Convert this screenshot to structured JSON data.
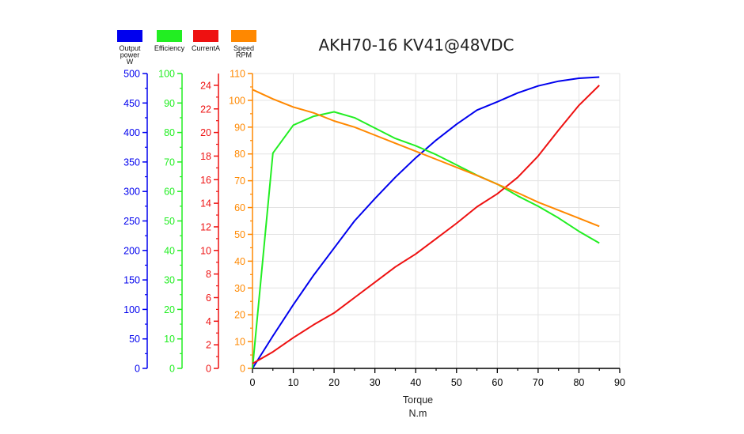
{
  "chart_data": {
    "type": "line",
    "title": "AKH70-16 KV41@48VDC",
    "xlabel": "Torque",
    "xunit": "N.m",
    "xlim": [
      0,
      90
    ],
    "xticks": [
      0,
      10,
      20,
      30,
      40,
      50,
      60,
      70,
      80,
      90
    ],
    "grid": true,
    "legend_position": "top-left",
    "series": [
      {
        "key": "power",
        "name": "Output power W",
        "legend_lines": [
          "Output",
          "power",
          "W"
        ],
        "color": "#0000ee",
        "ylim": [
          0,
          500
        ],
        "yticks": [
          0,
          50,
          100,
          150,
          200,
          250,
          300,
          350,
          400,
          450,
          500
        ],
        "x": [
          0,
          5,
          10,
          15,
          20,
          25,
          30,
          35,
          40,
          45,
          50,
          55,
          60,
          65,
          70,
          75,
          80,
          85
        ],
        "y": [
          0,
          55,
          108,
          158,
          204,
          250,
          288,
          324,
          357,
          387,
          414,
          438,
          452,
          467,
          479,
          487,
          492,
          494
        ]
      },
      {
        "key": "efficiency",
        "name": "Efficiency",
        "legend_lines": [
          "Efficiency"
        ],
        "color": "#22ee22",
        "ylim": [
          0,
          100
        ],
        "yticks": [
          0,
          10,
          20,
          30,
          40,
          50,
          60,
          70,
          80,
          90,
          100
        ],
        "x": [
          0,
          5,
          10,
          15,
          20,
          25,
          30,
          35,
          40,
          45,
          50,
          55,
          60,
          65,
          70,
          75,
          80,
          85
        ],
        "y": [
          0,
          73,
          82.5,
          85.5,
          87,
          85,
          81.5,
          78,
          75.5,
          72.5,
          69,
          65.5,
          62.5,
          58.5,
          55,
          51,
          46.5,
          42.5
        ]
      },
      {
        "key": "current",
        "name": "CurrentA",
        "legend_lines": [
          "CurrentA"
        ],
        "color": "#ee1111",
        "ylim": [
          0,
          25
        ],
        "yticks": [
          0,
          2,
          4,
          6,
          8,
          10,
          12,
          14,
          16,
          18,
          20,
          22,
          24
        ],
        "x": [
          0,
          5,
          10,
          15,
          20,
          25,
          30,
          35,
          40,
          45,
          50,
          55,
          60,
          65,
          70,
          75,
          80,
          85
        ],
        "y": [
          0.4,
          1.4,
          2.6,
          3.7,
          4.7,
          6.0,
          7.3,
          8.6,
          9.7,
          11.0,
          12.3,
          13.7,
          14.8,
          16.2,
          18.0,
          20.2,
          22.3,
          24.0
        ]
      },
      {
        "key": "speed",
        "name": "Speed RPM",
        "legend_lines": [
          "Speed",
          "RPM"
        ],
        "color": "#ff8800",
        "ylim": [
          0,
          110
        ],
        "yticks": [
          0,
          10,
          20,
          30,
          40,
          50,
          60,
          70,
          80,
          90,
          100,
          110
        ],
        "x": [
          0,
          5,
          10,
          15,
          20,
          25,
          30,
          35,
          40,
          45,
          50,
          55,
          60,
          65,
          70,
          75,
          80,
          85
        ],
        "y": [
          104,
          100.5,
          97.5,
          95.3,
          92.3,
          90,
          87,
          84,
          81,
          78,
          75,
          72,
          68.7,
          65.5,
          62,
          59,
          56,
          53
        ]
      }
    ]
  }
}
